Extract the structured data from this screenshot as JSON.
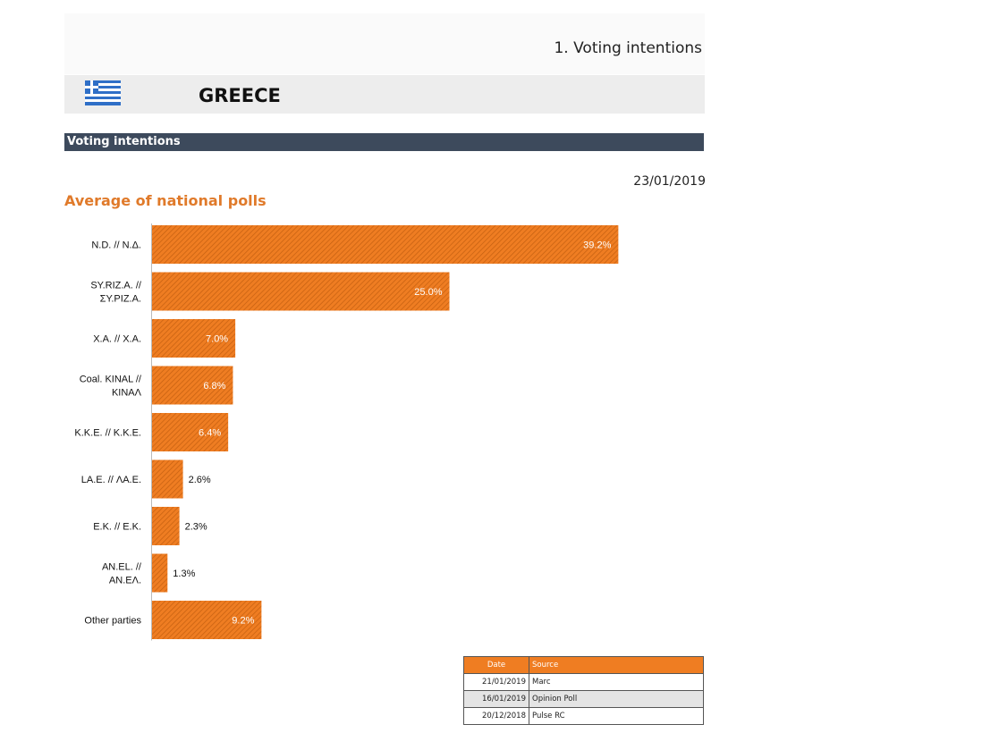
{
  "header": {
    "section_title": "1. Voting intentions",
    "country": "GREECE",
    "section_bar": "Voting intentions",
    "date": "23/01/2019",
    "flag_icon": "greek-flag-icon"
  },
  "colors": {
    "bar": "#ef7d22",
    "bar_hatch": "#c45f10",
    "section_bar": "#3d4a5c",
    "title": "#e07a2a"
  },
  "chart_data": {
    "type": "bar",
    "orientation": "horizontal",
    "title": "Average of national polls",
    "categories": [
      [
        "N.D. // N.Δ."
      ],
      [
        "SY.RIZ.A. //",
        "ΣY.PIZ.A."
      ],
      [
        "X.A. // X.A."
      ],
      [
        "Coal. KINAL //",
        "KINAΛ"
      ],
      [
        "K.K.E. // K.K.E."
      ],
      [
        "LA.E. // ΛA.E."
      ],
      [
        "E.K. // E.K."
      ],
      [
        "AN.EL. //",
        "AN.EΛ."
      ],
      [
        "Other parties"
      ]
    ],
    "values": [
      39.2,
      25.0,
      7.0,
      6.8,
      6.4,
      2.6,
      2.3,
      1.3,
      9.2
    ],
    "value_labels": [
      "39.2%",
      "25.0%",
      "7.0%",
      "6.8%",
      "6.4%",
      "2.6%",
      "2.3%",
      "1.3%",
      "9.2%"
    ],
    "xlim": [
      0,
      45
    ],
    "grid": false,
    "legend": "none"
  },
  "sources": {
    "headers": [
      "Date",
      "Source"
    ],
    "rows": [
      [
        "21/01/2019",
        "Marc"
      ],
      [
        "16/01/2019",
        "Opinion Poll"
      ],
      [
        "20/12/2018",
        "Pulse RC"
      ]
    ]
  }
}
